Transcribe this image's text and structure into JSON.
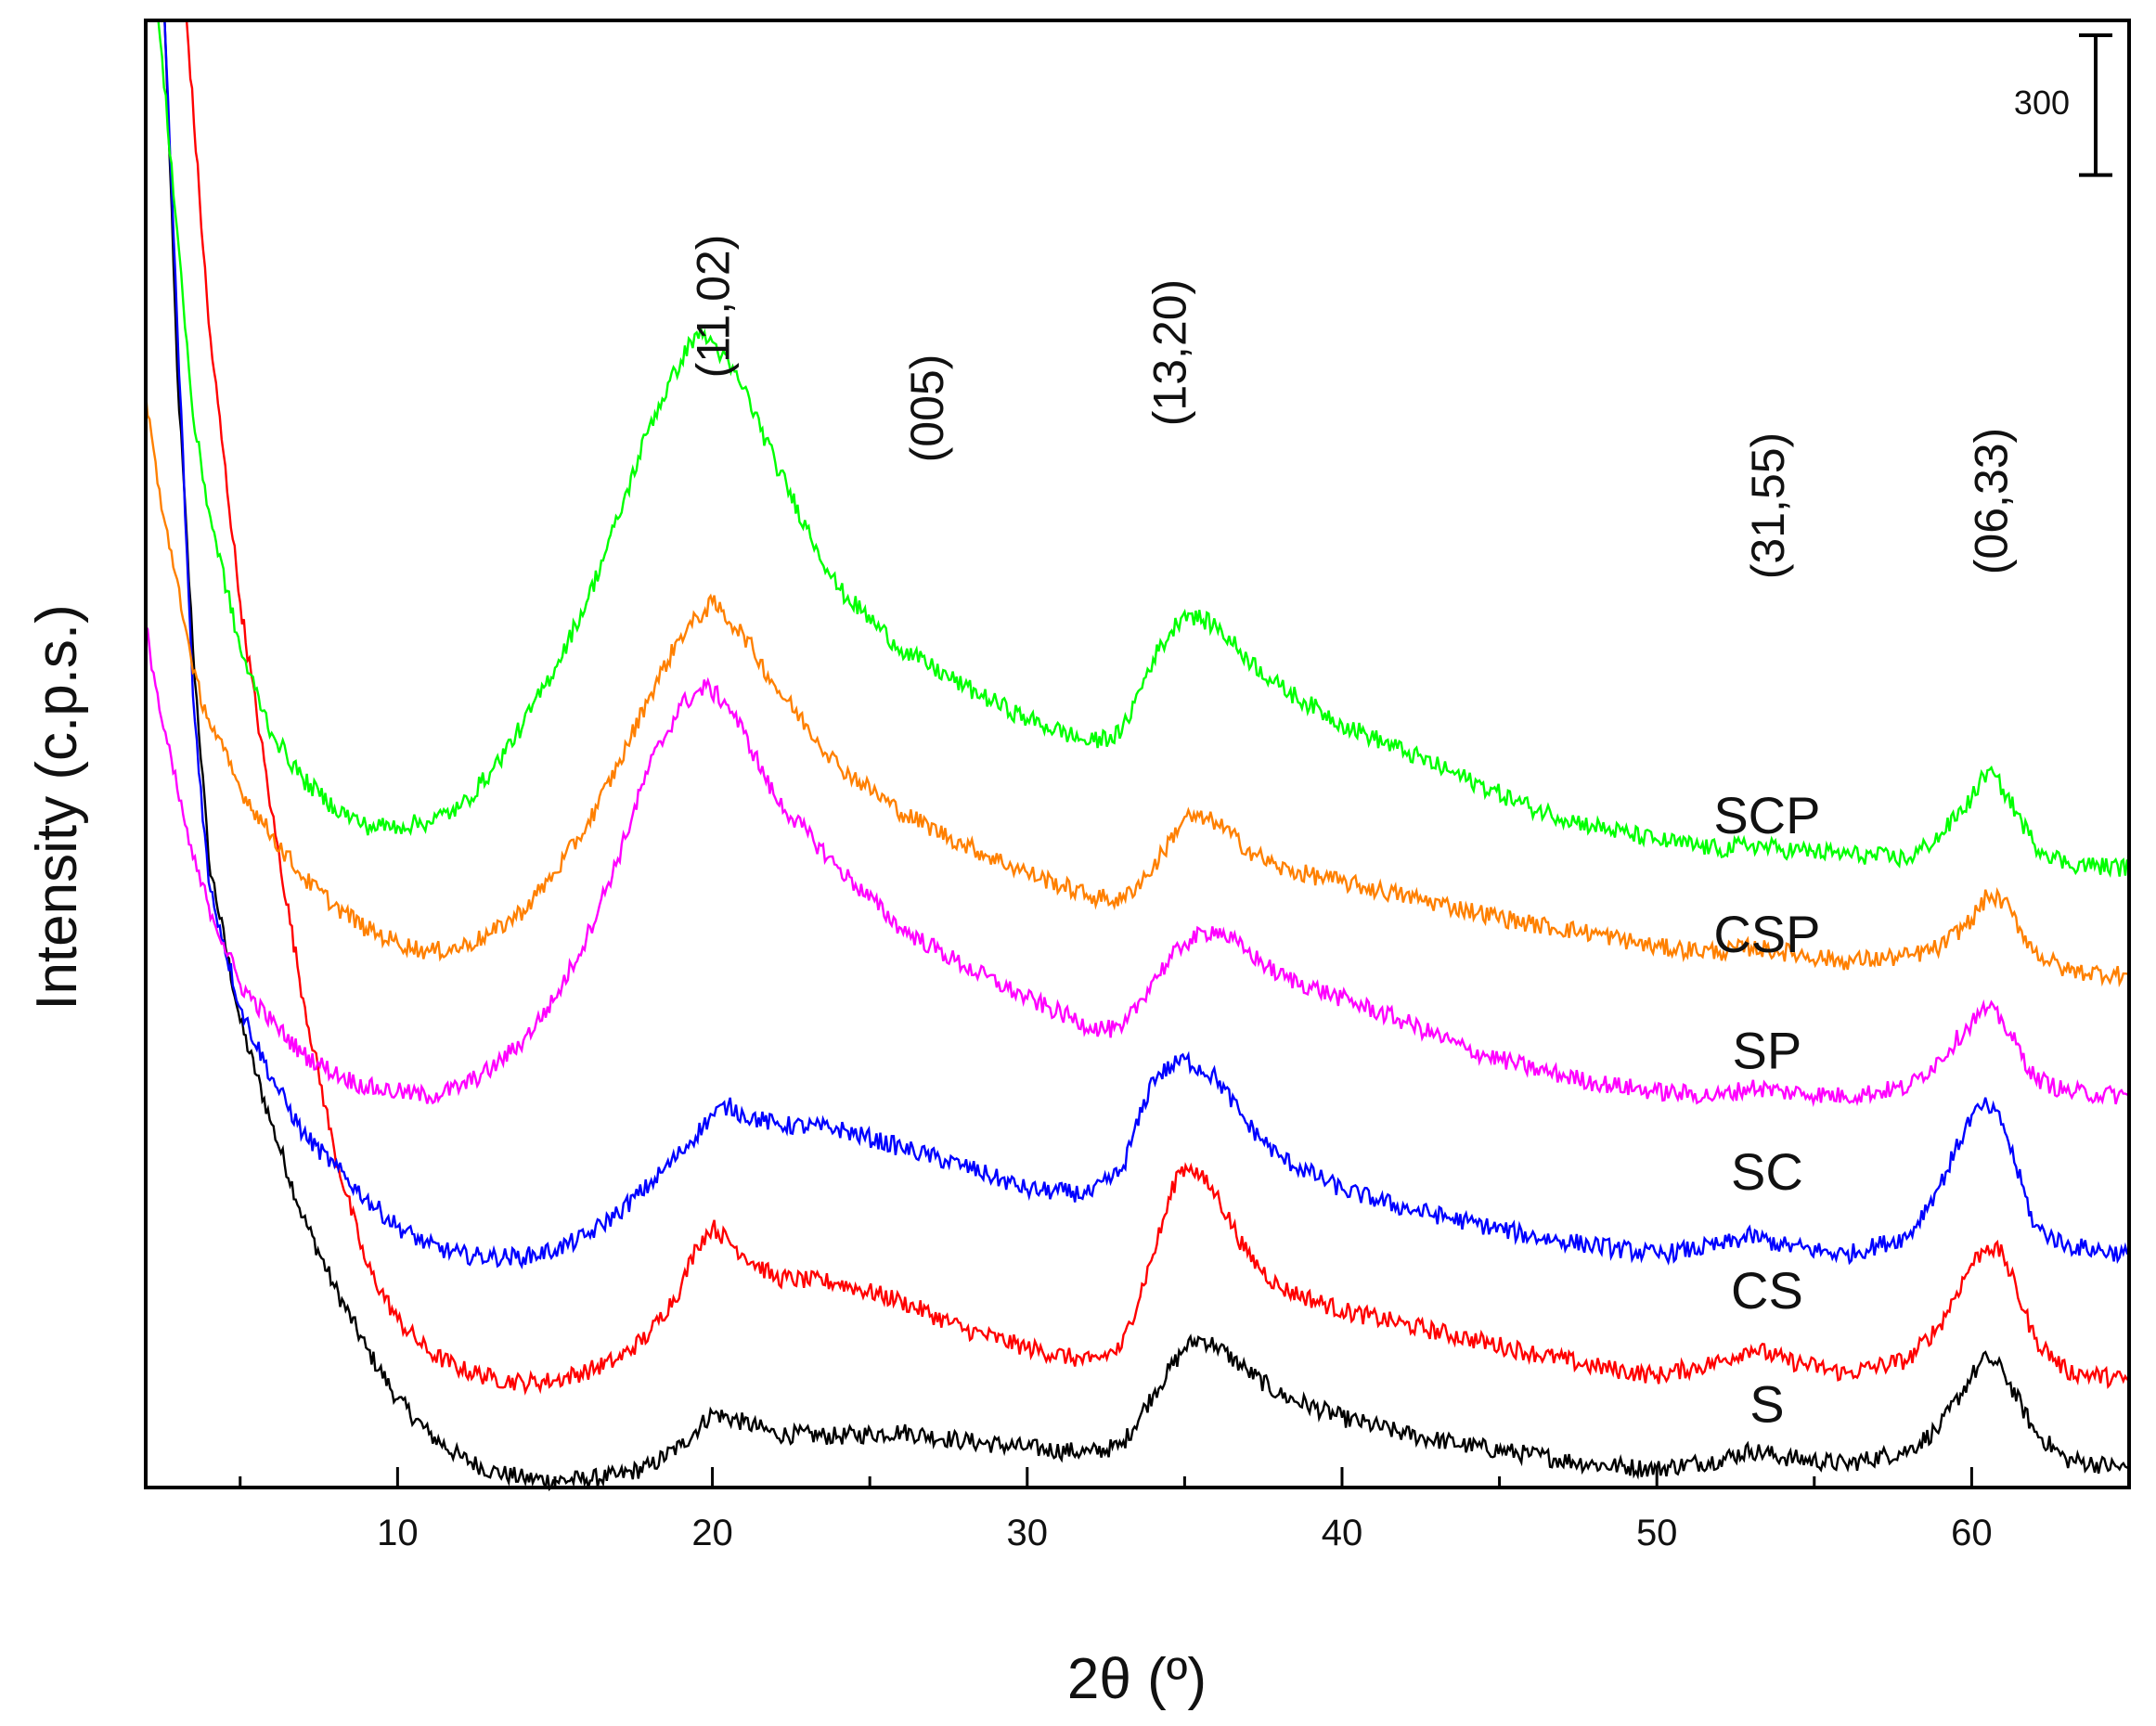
{
  "chart_data": {
    "type": "line",
    "title": "",
    "xlabel": "2θ (º)",
    "ylabel": "Intensity (c.p.s.)",
    "xlim": [
      2,
      65
    ],
    "ylim": [
      0,
      3150
    ],
    "x_ticks": [
      10,
      20,
      30,
      40,
      50,
      60
    ],
    "x_minor_ticks": [
      5,
      15,
      25,
      35,
      45,
      55
    ],
    "scale_bar": {
      "value": 300,
      "label": "300"
    },
    "hkl_annotations": [
      {
        "label": "(11,02)",
        "x": 20
      },
      {
        "label": "(005)",
        "x": 26.8
      },
      {
        "label": "(13,20)",
        "x": 34.5
      },
      {
        "label": "(31,55)",
        "x": 53.5
      },
      {
        "label": "(06,33)",
        "x": 60.6
      }
    ],
    "series": [
      {
        "name": "S",
        "label": "S",
        "color": "#000000",
        "label_pos": [
          53.5,
          140
        ],
        "x": [
          2.6,
          3.0,
          3.5,
          4.0,
          5.0,
          6.0,
          7.0,
          8.0,
          9.0,
          10.0,
          11.0,
          12.0,
          13.0,
          14.0,
          15.0,
          16.0,
          17.0,
          18.0,
          19.0,
          20.0,
          21.0,
          22.0,
          24.0,
          26.0,
          28.0,
          30.0,
          32.0,
          33.0,
          34.0,
          35.0,
          35.5,
          36.0,
          37.0,
          38.0,
          40.0,
          42.0,
          44.0,
          46.0,
          48.0,
          50.0,
          52.0,
          53.0,
          54.0,
          56.0,
          58.0,
          59.0,
          60.0,
          60.5,
          61.0,
          62.0,
          63.0,
          65.0
        ],
        "values": [
          3150,
          2400,
          1800,
          1350,
          1000,
          780,
          580,
          430,
          300,
          190,
          115,
          65,
          35,
          20,
          15,
          18,
          25,
          45,
          90,
          160,
          140,
          115,
          110,
          120,
          100,
          85,
          75,
          90,
          200,
          300,
          320,
          305,
          250,
          200,
          150,
          115,
          90,
          70,
          50,
          40,
          60,
          80,
          65,
          50,
          80,
          130,
          240,
          280,
          250,
          120,
          60,
          40
        ]
      },
      {
        "name": "CS",
        "label": "CS",
        "color": "#ff0000",
        "label_pos": [
          53.5,
          385
        ],
        "x": [
          3.3,
          4.0,
          5.0,
          6.0,
          7.0,
          8.0,
          9.0,
          10.0,
          11.0,
          12.0,
          13.0,
          14.0,
          15.0,
          16.0,
          17.0,
          18.0,
          19.0,
          19.5,
          20.0,
          21.0,
          22.0,
          24.0,
          26.0,
          28.0,
          30.0,
          32.0,
          33.0,
          34.0,
          34.8,
          35.2,
          36.0,
          37.0,
          38.0,
          40.0,
          42.0,
          44.0,
          46.0,
          48.0,
          50.0,
          52.0,
          53.0,
          54.0,
          56.0,
          58.0,
          59.0,
          60.0,
          60.5,
          61.0,
          62.0,
          63.0,
          65.0
        ],
        "values": [
          3150,
          2500,
          1900,
          1450,
          1050,
          720,
          480,
          360,
          290,
          255,
          235,
          225,
          230,
          250,
          275,
          330,
          430,
          520,
          560,
          500,
          450,
          440,
          400,
          340,
          300,
          270,
          300,
          500,
          680,
          690,
          630,
          500,
          430,
          380,
          350,
          320,
          290,
          260,
          240,
          270,
          300,
          275,
          245,
          275,
          350,
          480,
          520,
          500,
          320,
          250,
          230
        ]
      },
      {
        "name": "SC",
        "label": "SC",
        "color": "#0000ff",
        "label_pos": [
          53.5,
          640
        ],
        "x": [
          2.6,
          3.0,
          3.5,
          4.0,
          5.0,
          6.0,
          7.0,
          8.0,
          9.0,
          10.0,
          11.0,
          12.0,
          13.0,
          14.0,
          15.0,
          16.0,
          17.0,
          18.0,
          19.0,
          20.0,
          20.5,
          21.0,
          22.0,
          24.0,
          26.0,
          28.0,
          30.0,
          32.0,
          33.0,
          34.0,
          35.0,
          36.0,
          37.0,
          38.0,
          40.0,
          42.0,
          44.0,
          46.0,
          48.0,
          50.0,
          52.0,
          53.0,
          54.0,
          56.0,
          58.0,
          59.0,
          60.0,
          60.5,
          61.0,
          62.0,
          63.0,
          65.0
        ],
        "values": [
          3150,
          2500,
          1700,
          1300,
          1030,
          880,
          760,
          690,
          620,
          560,
          520,
          500,
          495,
          495,
          510,
          540,
          590,
          650,
          720,
          800,
          820,
          800,
          780,
          770,
          730,
          690,
          640,
          630,
          680,
          880,
          920,
          880,
          780,
          710,
          640,
          600,
          570,
          540,
          520,
          500,
          520,
          540,
          520,
          500,
          540,
          650,
          800,
          820,
          780,
          560,
          520,
          500
        ]
      },
      {
        "name": "SP",
        "label": "SP",
        "color": "#ff00ff",
        "label_pos": [
          53.5,
          900
        ],
        "x": [
          2.0,
          2.5,
          3.0,
          3.5,
          4.0,
          5.0,
          6.0,
          7.0,
          8.0,
          9.0,
          10.0,
          11.0,
          12.0,
          13.0,
          14.0,
          15.0,
          16.0,
          17.0,
          18.0,
          19.0,
          19.8,
          20.5,
          21.0,
          22.0,
          24.0,
          26.0,
          28.0,
          30.0,
          32.0,
          33.0,
          34.0,
          35.0,
          36.0,
          37.0,
          38.0,
          40.0,
          42.0,
          44.0,
          46.0,
          48.0,
          50.0,
          52.0,
          53.0,
          54.0,
          56.0,
          58.0,
          59.0,
          60.0,
          60.5,
          61.0,
          62.0,
          63.0,
          65.0
        ],
        "values": [
          1850,
          1650,
          1500,
          1350,
          1250,
          1080,
          1000,
          930,
          890,
          860,
          850,
          840,
          860,
          900,
          960,
          1050,
          1180,
          1350,
          1550,
          1680,
          1720,
          1680,
          1620,
          1480,
          1330,
          1200,
          1120,
          1050,
          990,
          980,
          1090,
          1170,
          1200,
          1150,
          1100,
          1050,
          1000,
          940,
          900,
          870,
          850,
          840,
          860,
          850,
          840,
          860,
          920,
          1000,
          1030,
          1000,
          880,
          850,
          840
        ]
      },
      {
        "name": "CSP",
        "label": "CSP",
        "color": "#ff8000",
        "label_pos": [
          53.5,
          1150
        ],
        "x": [
          2.0,
          2.5,
          3.0,
          3.5,
          4.0,
          5.0,
          6.0,
          7.0,
          8.0,
          9.0,
          10.0,
          11.0,
          12.0,
          13.0,
          14.0,
          15.0,
          16.0,
          17.0,
          18.0,
          19.0,
          20.0,
          21.0,
          22.0,
          24.0,
          26.0,
          28.0,
          30.0,
          32.0,
          33.0,
          34.0,
          35.0,
          36.0,
          37.0,
          38.0,
          40.0,
          42.0,
          44.0,
          46.0,
          48.0,
          50.0,
          52.0,
          53.0,
          54.0,
          56.0,
          58.0,
          59.0,
          60.0,
          60.5,
          61.0,
          62.0,
          63.0,
          65.0
        ],
        "values": [
          2350,
          2100,
          1950,
          1750,
          1650,
          1500,
          1400,
          1310,
          1250,
          1200,
          1170,
          1150,
          1160,
          1190,
          1240,
          1320,
          1420,
          1550,
          1700,
          1830,
          1900,
          1830,
          1720,
          1550,
          1450,
          1380,
          1320,
          1270,
          1260,
          1330,
          1440,
          1430,
          1370,
          1330,
          1300,
          1270,
          1240,
          1210,
          1190,
          1160,
          1150,
          1160,
          1150,
          1130,
          1140,
          1160,
          1220,
          1270,
          1260,
          1150,
          1110,
          1100
        ]
      },
      {
        "name": "SCP",
        "label": "SCP",
        "color": "#00ff00",
        "label_pos": [
          53.5,
          1405
        ],
        "x": [
          2.4,
          3.0,
          3.5,
          4.0,
          5.0,
          6.0,
          7.0,
          8.0,
          9.0,
          10.0,
          11.0,
          12.0,
          13.0,
          14.0,
          15.0,
          16.0,
          17.0,
          18.0,
          19.0,
          19.5,
          20.0,
          21.0,
          22.0,
          23.0,
          24.0,
          26.0,
          28.0,
          30.0,
          32.0,
          33.0,
          34.0,
          35.0,
          36.0,
          37.0,
          38.0,
          40.0,
          42.0,
          44.0,
          46.0,
          48.0,
          50.0,
          52.0,
          53.0,
          54.0,
          56.0,
          58.0,
          59.0,
          60.0,
          60.5,
          61.0,
          62.0,
          63.0,
          65.0
        ],
        "values": [
          3150,
          2700,
          2300,
          2100,
          1800,
          1620,
          1520,
          1460,
          1420,
          1420,
          1430,
          1460,
          1540,
          1640,
          1760,
          1900,
          2080,
          2280,
          2420,
          2480,
          2460,
          2360,
          2200,
          2060,
          1930,
          1800,
          1720,
          1650,
          1600,
          1620,
          1780,
          1880,
          1850,
          1780,
          1720,
          1640,
          1580,
          1520,
          1460,
          1420,
          1390,
          1370,
          1380,
          1370,
          1360,
          1350,
          1400,
          1480,
          1540,
          1500,
          1380,
          1340,
          1330
        ]
      }
    ]
  }
}
